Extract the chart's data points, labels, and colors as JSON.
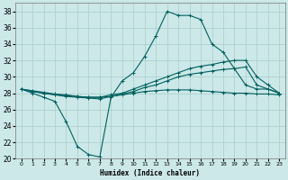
{
  "xlabel": "Humidex (Indice chaleur)",
  "bg_color": "#cce8e8",
  "grid_color": "#aacccc",
  "line_color": "#006060",
  "xlim": [
    0,
    23
  ],
  "ylim": [
    20,
    39
  ],
  "yticks": [
    20,
    22,
    24,
    26,
    28,
    30,
    32,
    34,
    36,
    38
  ],
  "xticks": [
    0,
    1,
    2,
    3,
    4,
    5,
    6,
    7,
    8,
    9,
    10,
    11,
    12,
    13,
    14,
    15,
    16,
    17,
    18,
    19,
    20,
    21,
    22,
    23
  ],
  "series": [
    {
      "x": [
        0,
        1,
        2,
        3,
        4,
        5,
        6,
        7,
        8,
        9,
        10,
        11,
        12,
        13,
        14,
        15,
        16,
        17,
        18,
        19,
        20,
        21,
        22,
        23
      ],
      "y": [
        28.5,
        28.0,
        27.5,
        27.0,
        24.5,
        21.5,
        20.5,
        20.2,
        27.5,
        29.5,
        30.5,
        32.5,
        35.0,
        38.0,
        37.5,
        37.5,
        37.0,
        34.0,
        33.0,
        31.0,
        29.0,
        28.5,
        28.5,
        28.0
      ]
    },
    {
      "x": [
        0,
        1,
        2,
        3,
        4,
        5,
        6,
        7,
        8,
        9,
        10,
        11,
        12,
        13,
        14,
        15,
        16,
        17,
        18,
        19,
        20,
        21,
        22,
        23
      ],
      "y": [
        28.5,
        28.3,
        28.1,
        27.9,
        27.8,
        27.6,
        27.5,
        27.5,
        27.8,
        28.0,
        28.5,
        29.0,
        29.5,
        30.0,
        30.5,
        31.0,
        31.3,
        31.5,
        31.8,
        32.0,
        32.0,
        30.0,
        29.0,
        28.0
      ]
    },
    {
      "x": [
        0,
        1,
        2,
        3,
        4,
        5,
        6,
        7,
        8,
        9,
        10,
        11,
        12,
        13,
        14,
        15,
        16,
        17,
        18,
        19,
        20,
        21,
        22,
        23
      ],
      "y": [
        28.5,
        28.2,
        28.0,
        27.8,
        27.6,
        27.5,
        27.4,
        27.3,
        27.6,
        27.9,
        28.2,
        28.7,
        29.0,
        29.5,
        30.0,
        30.3,
        30.5,
        30.7,
        30.9,
        31.0,
        31.2,
        29.0,
        28.5,
        28.0
      ]
    },
    {
      "x": [
        0,
        1,
        2,
        3,
        4,
        5,
        6,
        7,
        8,
        9,
        10,
        11,
        12,
        13,
        14,
        15,
        16,
        17,
        18,
        19,
        20,
        21,
        22,
        23
      ],
      "y": [
        28.5,
        28.2,
        28.0,
        27.8,
        27.7,
        27.6,
        27.5,
        27.5,
        27.6,
        27.8,
        28.0,
        28.2,
        28.3,
        28.4,
        28.4,
        28.4,
        28.3,
        28.2,
        28.1,
        28.0,
        28.0,
        27.9,
        27.9,
        27.8
      ]
    }
  ]
}
